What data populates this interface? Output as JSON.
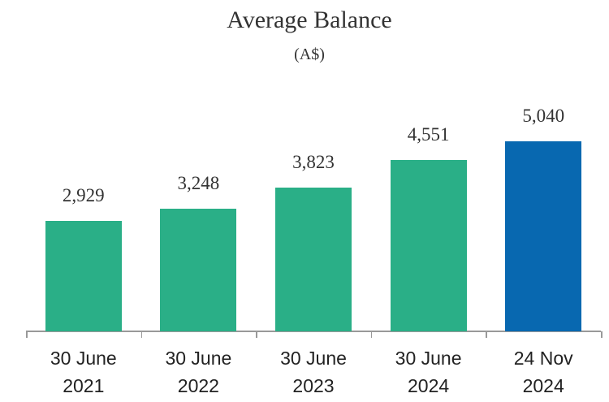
{
  "chart_data": {
    "type": "bar",
    "title": "Average Balance",
    "subtitle": "(A$)",
    "categories": [
      "30 June 2021",
      "30 June 2022",
      "30 June 2023",
      "30 June 2024",
      "24 Nov 2024"
    ],
    "values": [
      2929,
      3248,
      3823,
      4551,
      5040
    ],
    "value_labels": [
      "2,929",
      "3,248",
      "3,823",
      "4,551",
      "5,040"
    ],
    "colors": [
      "#2aaf87",
      "#2aaf87",
      "#2aaf87",
      "#2aaf87",
      "#0868b0"
    ]
  }
}
